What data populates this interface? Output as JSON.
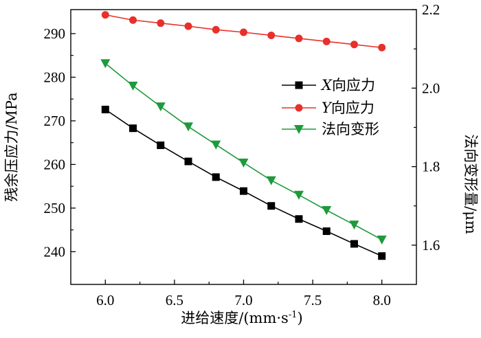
{
  "chart_data": {
    "type": "line",
    "x": [
      6.0,
      6.2,
      6.4,
      6.6,
      6.8,
      7.0,
      7.2,
      7.4,
      7.6,
      7.8,
      8.0
    ],
    "x_ticks": [
      "6.0",
      "6.5",
      "7.0",
      "7.5",
      "8.0"
    ],
    "xlim": [
      5.75,
      8.25
    ],
    "xlabel": "进给速度/(mm·s",
    "xlabel_sup": "-1",
    "xlabel_end": ")",
    "ylabel_left": "残余压应力/MPa",
    "ylim_left": [
      232.5,
      295.5
    ],
    "y_ticks_left": [
      "240",
      "250",
      "260",
      "270",
      "280",
      "290"
    ],
    "ylabel_right": "法向变形量/μm",
    "ylim_right": [
      1.5,
      2.2
    ],
    "y_ticks_right": [
      "1.6",
      "1.8",
      "2.0",
      "2.2"
    ],
    "legend_position": "upper-right",
    "series": [
      {
        "name": "X向应力",
        "name_var": "X",
        "name_rest": "向应力",
        "axis": "left",
        "marker": "square",
        "color": "#000000",
        "values": [
          272.6,
          268.3,
          264.4,
          260.7,
          257.1,
          253.9,
          250.5,
          247.5,
          244.7,
          241.8,
          239.0
        ]
      },
      {
        "name": "Y向应力",
        "name_var": "Y",
        "name_rest": "向应力",
        "axis": "left",
        "marker": "circle",
        "color": "#e8302a",
        "values": [
          294.3,
          293.1,
          292.4,
          291.7,
          290.9,
          290.3,
          289.6,
          288.9,
          288.2,
          287.5,
          286.8
        ]
      },
      {
        "name": "法向变形",
        "name_var": "",
        "name_rest": "法向变形",
        "axis": "right",
        "marker": "triangle-down",
        "color": "#1e9a3c",
        "values": [
          2.063,
          2.006,
          1.953,
          1.902,
          1.856,
          1.81,
          1.765,
          1.728,
          1.689,
          1.652,
          1.614
        ]
      }
    ]
  }
}
